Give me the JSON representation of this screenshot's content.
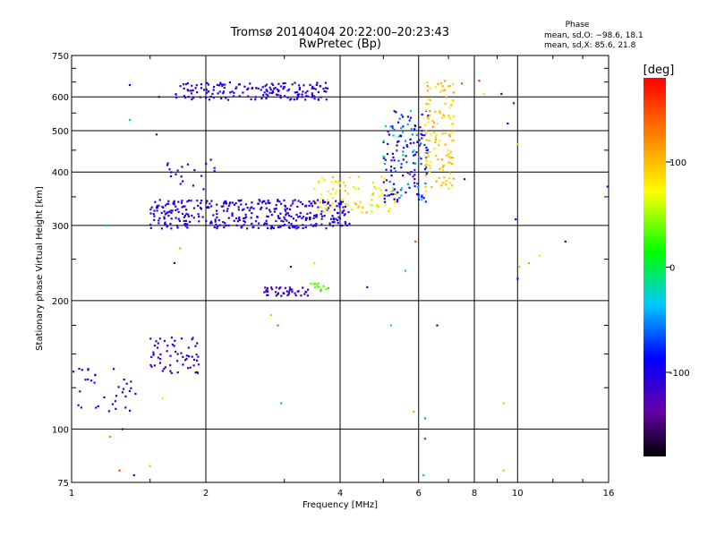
{
  "chart_data": {
    "type": "scatter",
    "title": "Tromsø 20140404 20:22:00–20:23:43",
    "subtitle": "RwPretec (Bp)",
    "xlabel": "Frequency [MHz]",
    "ylabel": "Stationary phase Virtual Height [km]",
    "x_scale": "log",
    "y_scale": "log",
    "xlim": [
      1,
      16
    ],
    "ylim": [
      75,
      750
    ],
    "x_ticks": [
      {
        "value": 1,
        "label": "1"
      },
      {
        "value": 2,
        "label": "2"
      },
      {
        "value": 4,
        "label": "4"
      },
      {
        "value": 6,
        "label": "6"
      },
      {
        "value": 8,
        "label": "8"
      },
      {
        "value": 10,
        "label": "10"
      },
      {
        "value": 16,
        "label": "16"
      }
    ],
    "y_ticks": [
      {
        "value": 75,
        "label": "75"
      },
      {
        "value": 100,
        "label": "100"
      },
      {
        "value": 200,
        "label": "200"
      },
      {
        "value": 300,
        "label": "300"
      },
      {
        "value": 400,
        "label": "400"
      },
      {
        "value": 500,
        "label": "500"
      },
      {
        "value": 600,
        "label": "600"
      },
      {
        "value": 750,
        "label": "750"
      }
    ],
    "grid": true,
    "stats": {
      "heading": "Phase",
      "line1": "mean, sd,O: −98.6, 18.1",
      "line2": "mean, sd,X:  85.6, 21.8"
    },
    "colorbar": {
      "label": "[deg]",
      "range": [
        -180,
        180
      ],
      "ticks": [
        {
          "value": 100,
          "label": "100"
        },
        {
          "value": 0,
          "label": "0"
        },
        {
          "value": -100,
          "label": "-100"
        }
      ]
    },
    "clusters": [
      {
        "x": [
          1.7,
          3.8
        ],
        "y": [
          590,
          650
        ],
        "phase": -105,
        "phase_sd": 15,
        "n": 170
      },
      {
        "x": [
          1.5,
          4.2
        ],
        "y": [
          295,
          345
        ],
        "phase": -105,
        "phase_sd": 15,
        "n": 380
      },
      {
        "x": [
          3.5,
          5.4
        ],
        "y": [
          320,
          390
        ],
        "phase": 80,
        "phase_sd": 30,
        "n": 90
      },
      {
        "x": [
          5.0,
          6.3
        ],
        "y": [
          340,
          560
        ],
        "phase": -80,
        "phase_sd": 60,
        "n": 150
      },
      {
        "x": [
          6.2,
          7.2
        ],
        "y": [
          360,
          660
        ],
        "phase": 95,
        "phase_sd": 25,
        "n": 120
      },
      {
        "x": [
          2.7,
          3.4
        ],
        "y": [
          205,
          215
        ],
        "phase": -115,
        "phase_sd": 10,
        "n": 45
      },
      {
        "x": [
          3.4,
          3.8
        ],
        "y": [
          210,
          220
        ],
        "phase": 30,
        "phase_sd": 10,
        "n": 12
      },
      {
        "x": [
          1.5,
          1.95
        ],
        "y": [
          135,
          165
        ],
        "phase": -110,
        "phase_sd": 10,
        "n": 60
      },
      {
        "x": [
          1.0,
          1.4
        ],
        "y": [
          110,
          140
        ],
        "phase": -105,
        "phase_sd": 15,
        "n": 35
      },
      {
        "x": [
          1.6,
          2.1
        ],
        "y": [
          360,
          430
        ],
        "phase": -95,
        "phase_sd": 20,
        "n": 20
      }
    ],
    "points": [
      {
        "x": 1.2,
        "y": 300,
        "phase": -20
      },
      {
        "x": 1.35,
        "y": 640,
        "phase": -90
      },
      {
        "x": 1.35,
        "y": 530,
        "phase": -40
      },
      {
        "x": 1.28,
        "y": 80,
        "phase": 150
      },
      {
        "x": 1.38,
        "y": 78,
        "phase": -100
      },
      {
        "x": 1.5,
        "y": 82,
        "phase": 100
      },
      {
        "x": 1.22,
        "y": 96,
        "phase": 130
      },
      {
        "x": 1.3,
        "y": 100,
        "phase": -100
      },
      {
        "x": 1.6,
        "y": 118,
        "phase": 60
      },
      {
        "x": 1.7,
        "y": 245,
        "phase": -110
      },
      {
        "x": 1.75,
        "y": 265,
        "phase": 110
      },
      {
        "x": 1.55,
        "y": 490,
        "phase": -110
      },
      {
        "x": 1.57,
        "y": 600,
        "phase": -150
      },
      {
        "x": 2.8,
        "y": 185,
        "phase": 100
      },
      {
        "x": 2.9,
        "y": 175,
        "phase": 140
      },
      {
        "x": 2.95,
        "y": 115,
        "phase": -40
      },
      {
        "x": 3.1,
        "y": 240,
        "phase": -110
      },
      {
        "x": 3.5,
        "y": 245,
        "phase": 50
      },
      {
        "x": 4.6,
        "y": 215,
        "phase": -110
      },
      {
        "x": 5.2,
        "y": 175,
        "phase": -30
      },
      {
        "x": 5.6,
        "y": 235,
        "phase": -20
      },
      {
        "x": 5.9,
        "y": 275,
        "phase": 150
      },
      {
        "x": 5.85,
        "y": 110,
        "phase": 110
      },
      {
        "x": 6.2,
        "y": 106,
        "phase": -50
      },
      {
        "x": 6.2,
        "y": 95,
        "phase": 170
      },
      {
        "x": 6.15,
        "y": 78,
        "phase": -40
      },
      {
        "x": 6.6,
        "y": 175,
        "phase": -110
      },
      {
        "x": 7.6,
        "y": 385,
        "phase": -100
      },
      {
        "x": 7.5,
        "y": 645,
        "phase": 150
      },
      {
        "x": 8.2,
        "y": 655,
        "phase": 160
      },
      {
        "x": 8.4,
        "y": 610,
        "phase": 80
      },
      {
        "x": 9.2,
        "y": 610,
        "phase": -100
      },
      {
        "x": 9.5,
        "y": 520,
        "phase": -90
      },
      {
        "x": 9.8,
        "y": 580,
        "phase": -130
      },
      {
        "x": 10.0,
        "y": 465,
        "phase": 100
      },
      {
        "x": 9.9,
        "y": 310,
        "phase": -100
      },
      {
        "x": 10.1,
        "y": 240,
        "phase": 40
      },
      {
        "x": 10.0,
        "y": 225,
        "phase": -90
      },
      {
        "x": 10.6,
        "y": 245,
        "phase": 110
      },
      {
        "x": 11.2,
        "y": 255,
        "phase": 80
      },
      {
        "x": 12.8,
        "y": 275,
        "phase": -150
      },
      {
        "x": 15.9,
        "y": 370,
        "phase": -80
      },
      {
        "x": 9.3,
        "y": 115,
        "phase": 100
      },
      {
        "x": 9.3,
        "y": 80,
        "phase": 100
      }
    ]
  }
}
